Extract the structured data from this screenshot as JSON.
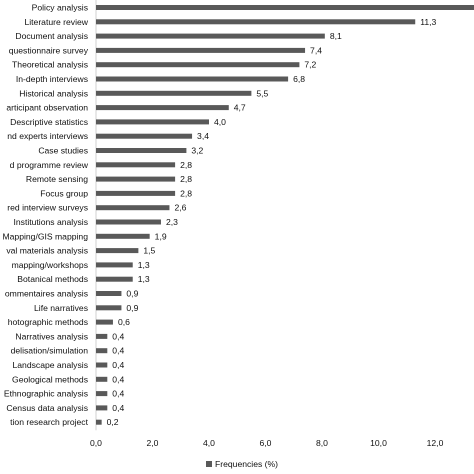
{
  "chart_data": {
    "type": "bar",
    "orientation": "horizontal",
    "categories": [
      "Policy analysis",
      "Literature review",
      "Document analysis",
      "questionnaire survey",
      "Theoretical analysis",
      "In-depth interviews",
      "Historical analysis",
      "articipant observation",
      "Descriptive statistics",
      "nd experts interviews",
      "Case studies",
      "d programme review",
      "Remote sensing",
      "Focus group",
      "red interview surveys",
      "Institutions analysis",
      "Mapping/GIS mapping",
      "val materials analysis",
      "mapping/workshops",
      "Botanical methods",
      "ommentaires analysis",
      "Life narratives",
      "hotographic methods",
      "Narratives analysis",
      "delisation/simulation",
      "Landscape analysis",
      "Geological methods",
      "Ethnographic analysis",
      "Census data analysis",
      "tion research project"
    ],
    "values": [
      13.5,
      11.3,
      8.1,
      7.4,
      7.2,
      6.8,
      5.5,
      4.7,
      4.0,
      3.4,
      3.2,
      2.8,
      2.8,
      2.8,
      2.6,
      2.3,
      1.9,
      1.5,
      1.3,
      1.3,
      0.9,
      0.9,
      0.6,
      0.4,
      0.4,
      0.4,
      0.4,
      0.4,
      0.4,
      0.2
    ],
    "value_labels": [
      "",
      "11,3",
      "8,1",
      "7,4",
      "7,2",
      "6,8",
      "5,5",
      "4,7",
      "4,0",
      "3,4",
      "3,2",
      "2,8",
      "2,8",
      "2,8",
      "2,6",
      "2,3",
      "1,9",
      "1,5",
      "1,3",
      "1,3",
      "0,9",
      "0,9",
      "0,6",
      "0,4",
      "0,4",
      "0,4",
      "0,4",
      "0,4",
      "0,4",
      "0,2"
    ],
    "x_ticks": [
      0,
      2,
      4,
      6,
      8,
      10,
      12
    ],
    "x_tick_labels": [
      "0,0",
      "2,0",
      "4,0",
      "6,0",
      "8,0",
      "10,0",
      "12,0"
    ],
    "xlim": [
      0,
      13.5
    ],
    "series": [
      {
        "name": "Frequencies (%)"
      }
    ],
    "legend_position": "bottom",
    "grid": false,
    "bar_color": "#595959"
  }
}
